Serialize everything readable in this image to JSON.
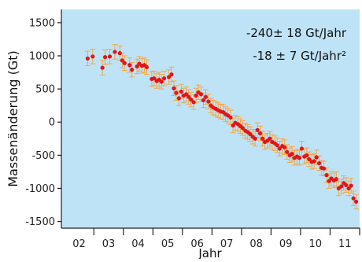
{
  "chart_data": {
    "type": "scatter",
    "title": "",
    "xlabel": "Jahr",
    "ylabel": "Massenänderung (Gt)",
    "xlim": [
      2001.4,
      2011.5
    ],
    "ylim": [
      -1600,
      1700
    ],
    "x_ticks": [
      2002,
      2003,
      2004,
      2005,
      2006,
      2007,
      2008,
      2009,
      2010,
      2011
    ],
    "x_tick_labels": [
      "02",
      "03",
      "04",
      "05",
      "06",
      "07",
      "08",
      "09",
      "10",
      "11"
    ],
    "y_ticks": [
      -1500,
      -1000,
      -500,
      0,
      500,
      1000,
      1500
    ],
    "y_tick_labels": [
      "-1500",
      "-1000",
      "-500",
      "0",
      "500",
      "1000",
      "1500"
    ],
    "grid": false,
    "colors": {
      "background": "#bfe3f6",
      "points": "#e0151b",
      "error_bars": "#f0a84a",
      "axis": "#222222"
    },
    "annotations": [
      "-240± 18 Gt/Jahr",
      "-18 ± 7 Gt/Jahr²"
    ],
    "error_bar": 110,
    "series": [
      {
        "x": [
          2002.29,
          2002.46,
          2002.79,
          2002.88,
          2003.04,
          2003.21,
          2003.38,
          2003.46,
          2003.54,
          2003.71,
          2003.79,
          2003.96,
          2004.04,
          2004.13,
          2004.21,
          2004.29,
          2004.46,
          2004.54,
          2004.63,
          2004.71,
          2004.79,
          2004.88,
          2005.04,
          2005.13,
          2005.21,
          2005.29,
          2005.38,
          2005.46,
          2005.54,
          2005.63,
          2005.71,
          2005.79,
          2005.88,
          2005.96,
          2006.04,
          2006.13,
          2006.21,
          2006.29,
          2006.38,
          2006.46,
          2006.54,
          2006.63,
          2006.71,
          2006.79,
          2006.88,
          2006.96,
          2007.04,
          2007.13,
          2007.21,
          2007.29,
          2007.38,
          2007.46,
          2007.54,
          2007.63,
          2007.71,
          2007.79,
          2007.88,
          2007.96,
          2008.04,
          2008.13,
          2008.21,
          2008.29,
          2008.38,
          2008.46,
          2008.54,
          2008.63,
          2008.71,
          2008.79,
          2008.88,
          2008.96,
          2009.04,
          2009.13,
          2009.21,
          2009.29,
          2009.38,
          2009.46,
          2009.54,
          2009.63,
          2009.71,
          2009.79,
          2009.88,
          2009.96,
          2010.04,
          2010.13,
          2010.21,
          2010.29,
          2010.38,
          2010.46,
          2010.54,
          2010.63,
          2010.71,
          2010.79,
          2010.88,
          2010.96,
          2011.04,
          2011.13,
          2011.21,
          2011.29,
          2011.38
        ],
        "y": [
          960,
          990,
          820,
          980,
          990,
          1060,
          1040,
          930,
          890,
          860,
          790,
          840,
          880,
          850,
          860,
          830,
          650,
          660,
          620,
          640,
          610,
          660,
          680,
          720,
          510,
          440,
          360,
          460,
          400,
          420,
          380,
          340,
          300,
          400,
          450,
          420,
          330,
          380,
          310,
          250,
          220,
          200,
          180,
          160,
          150,
          120,
          100,
          70,
          -50,
          -10,
          -30,
          -60,
          -90,
          -130,
          -150,
          -180,
          -220,
          -250,
          -120,
          -170,
          -250,
          -300,
          -280,
          -250,
          -300,
          -320,
          -350,
          -400,
          -360,
          -380,
          -450,
          -500,
          -480,
          -540,
          -520,
          -540,
          -400,
          -520,
          -500,
          -560,
          -600,
          -590,
          -530,
          -620,
          -690,
          -700,
          -800,
          -890,
          -850,
          -880,
          -860,
          -1000,
          -970,
          -920,
          -950,
          -1000,
          -960,
          -1150,
          -1200
        ]
      }
    ]
  }
}
